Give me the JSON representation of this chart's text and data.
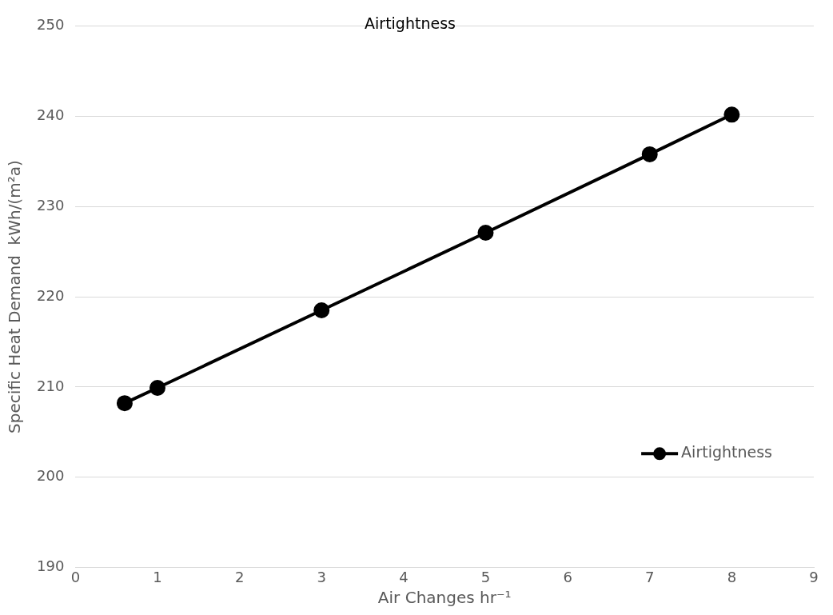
{
  "chart_data": {
    "type": "line",
    "title": "Airtightness",
    "xlabel": "Air Changes hr⁻¹",
    "ylabel": "Specific Heat Demand  kWh/(m²a)",
    "series": [
      {
        "name": "Airtightness",
        "color": "#000000",
        "x": [
          0.6,
          1,
          3,
          5,
          7,
          8
        ],
        "values": [
          208.2,
          209.9,
          218.5,
          227.1,
          235.8,
          240.2
        ]
      }
    ],
    "xlim": [
      0,
      9
    ],
    "xticks": [
      0,
      1,
      2,
      3,
      4,
      5,
      6,
      7,
      8,
      9
    ],
    "ylim": [
      190,
      250
    ],
    "yticks": [
      190,
      200,
      210,
      220,
      230,
      240,
      250
    ],
    "grid": "y",
    "legend": "bottom right",
    "marker": "circle",
    "line_style": "solid"
  }
}
